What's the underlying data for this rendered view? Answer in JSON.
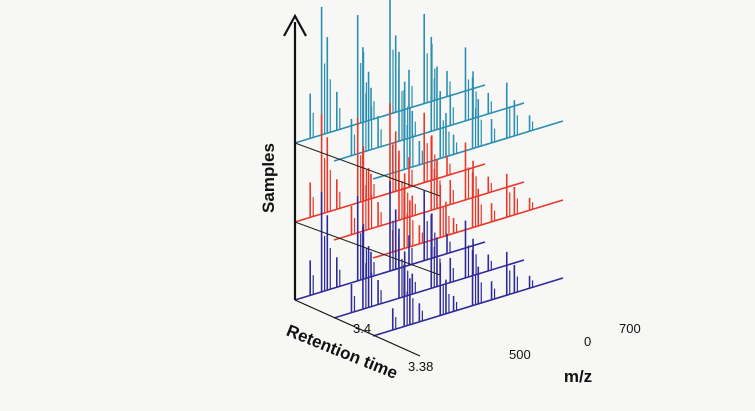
{
  "chart_data": {
    "type": "line",
    "title": "",
    "ylabel": "Samples",
    "xlabel": "Retention time",
    "zlabel": "m/z",
    "retention_ticks": [
      "3.4",
      "3.38"
    ],
    "mz_ticks": [
      "500",
      "0",
      "700"
    ],
    "groups": [
      {
        "color": "#2a8fb0",
        "traces": 3
      },
      {
        "color": "#e8372b",
        "traces": 3
      },
      {
        "color": "#2f2a9a",
        "traces": 3
      }
    ],
    "peak_profile": [
      {
        "p": 0.08,
        "h": 0.35
      },
      {
        "p": 0.14,
        "h": 1.0
      },
      {
        "p": 0.17,
        "h": 0.75
      },
      {
        "p": 0.22,
        "h": 0.3
      },
      {
        "p": 0.33,
        "h": 0.85
      },
      {
        "p": 0.36,
        "h": 0.55
      },
      {
        "p": 0.4,
        "h": 0.25
      },
      {
        "p": 0.5,
        "h": 0.9
      },
      {
        "p": 0.53,
        "h": 0.6
      },
      {
        "p": 0.6,
        "h": 0.3
      },
      {
        "p": 0.68,
        "h": 0.7
      },
      {
        "p": 0.72,
        "h": 0.45
      },
      {
        "p": 0.8,
        "h": 0.2
      }
    ]
  }
}
